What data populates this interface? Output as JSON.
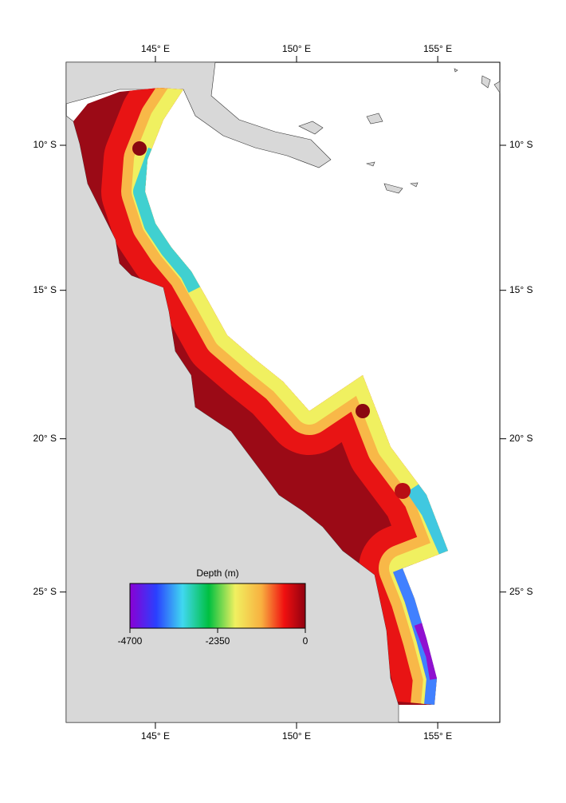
{
  "map": {
    "lon_extent": [
      141.84,
      157.2
    ],
    "lat_extent": [
      -7.1,
      -29.1
    ],
    "lon_ticks": [
      {
        "value": 145,
        "label": "145° E"
      },
      {
        "value": 150,
        "label": "150° E"
      },
      {
        "value": 155,
        "label": "155° E"
      }
    ],
    "lat_ticks": [
      {
        "value": -10,
        "label": "10° S"
      },
      {
        "value": -15,
        "label": "15° S"
      },
      {
        "value": -20,
        "label": "20° S"
      },
      {
        "value": -25,
        "label": "25° S"
      }
    ],
    "colorbar": {
      "title": "Depth (m)",
      "ticks": [
        -4700,
        -2350,
        0
      ]
    }
  }
}
